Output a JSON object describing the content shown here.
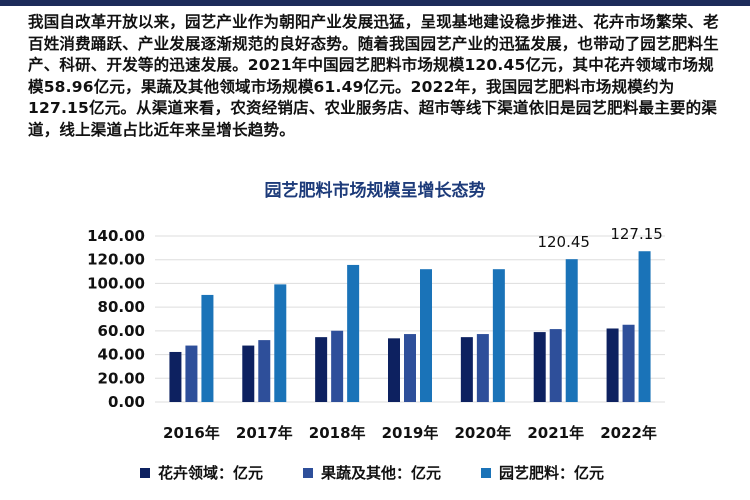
{
  "paragraph": "我国自改革开放以来，园艺产业作为朝阳产业发展迅猛，呈现基地建设稳步推进、花卉市场繁荣、老百姓消费踊跃、产业发展逐渐规范的良好态势。随着我国园艺产业的迅猛发展，也带动了园艺肥料生产、科研、开发等的迅速发展。2021年中国园艺肥料市场规模120.45亿元，其中花卉领域市场规模58.96亿元，果蔬及其他领域市场规模61.49亿元。2022年，我国园艺肥料市场规模约为127.15亿元。从渠道来看，农资经销店、农业服务店、超市等线下渠道依旧是园艺肥料最主要的渠道，线上渠道占比近年来呈增长趋势。",
  "chart_data": {
    "type": "bar",
    "title": "园艺肥料市场规模呈增长态势",
    "categories": [
      "2016年",
      "2017年",
      "2018年",
      "2019年",
      "2020年",
      "2021年",
      "2022年"
    ],
    "series": [
      {
        "name": "花卉领域：亿元",
        "color": "#0d2160",
        "values": [
          42.2,
          47.6,
          54.7,
          53.7,
          54.7,
          58.96,
          62.0
        ]
      },
      {
        "name": "果蔬及其他：亿元",
        "color": "#2e4f9a",
        "values": [
          47.6,
          52.2,
          60.1,
          57.3,
          57.3,
          61.49,
          65.15
        ]
      },
      {
        "name": "园艺肥料：亿元",
        "color": "#1a73b8",
        "values": [
          90.3,
          99.2,
          115.6,
          112.0,
          112.0,
          120.45,
          127.15
        ]
      }
    ],
    "data_labels": [
      {
        "category": "2021年",
        "series": "园艺肥料：亿元",
        "text": "120.45"
      },
      {
        "category": "2022年",
        "series": "园艺肥料：亿元",
        "text": "127.15"
      }
    ],
    "yticks": [
      "0.00",
      "20.00",
      "40.00",
      "60.00",
      "80.00",
      "100.00",
      "120.00",
      "140.00"
    ],
    "ylim": [
      0,
      140
    ],
    "grid": true,
    "legend_position": "bottom"
  }
}
